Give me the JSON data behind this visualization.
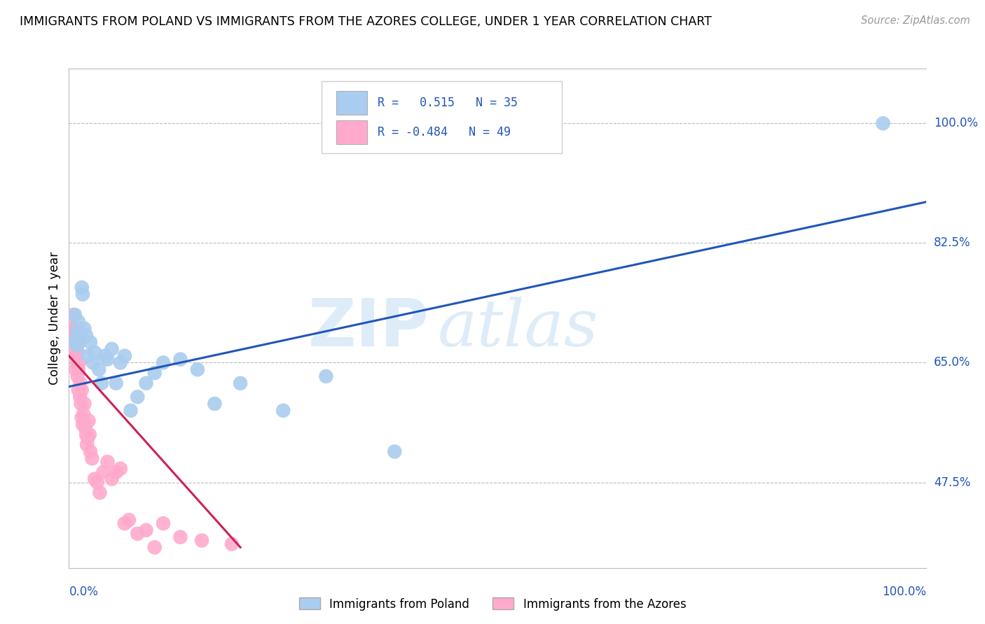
{
  "title": "IMMIGRANTS FROM POLAND VS IMMIGRANTS FROM THE AZORES COLLEGE, UNDER 1 YEAR CORRELATION CHART",
  "source": "Source: ZipAtlas.com",
  "ylabel": "College, Under 1 year",
  "ytick_labels": [
    "100.0%",
    "82.5%",
    "65.0%",
    "47.5%"
  ],
  "ytick_values": [
    1.0,
    0.825,
    0.65,
    0.475
  ],
  "xlim": [
    0.0,
    1.0
  ],
  "ylim": [
    0.35,
    1.08
  ],
  "blue_R": "0.515",
  "blue_N": "35",
  "pink_R": "-0.484",
  "pink_N": "49",
  "blue_color": "#aaccee",
  "pink_color": "#ffaacc",
  "blue_line_color": "#2255bb",
  "pink_line_color": "#cc2255",
  "watermark_zip": "ZIP",
  "watermark_atlas": "atlas",
  "legend_label_blue": "Immigrants from Poland",
  "legend_label_pink": "Immigrants from the Azores",
  "blue_points_x": [
    0.005,
    0.007,
    0.009,
    0.01,
    0.011,
    0.013,
    0.015,
    0.016,
    0.018,
    0.02,
    0.022,
    0.025,
    0.028,
    0.03,
    0.035,
    0.038,
    0.042,
    0.045,
    0.05,
    0.055,
    0.06,
    0.065,
    0.072,
    0.08,
    0.09,
    0.1,
    0.11,
    0.13,
    0.15,
    0.17,
    0.2,
    0.25,
    0.3,
    0.38,
    0.95
  ],
  "blue_points_y": [
    0.68,
    0.72,
    0.695,
    0.675,
    0.71,
    0.685,
    0.76,
    0.75,
    0.7,
    0.69,
    0.66,
    0.68,
    0.65,
    0.665,
    0.64,
    0.62,
    0.66,
    0.655,
    0.67,
    0.62,
    0.65,
    0.66,
    0.58,
    0.6,
    0.62,
    0.635,
    0.65,
    0.655,
    0.64,
    0.59,
    0.62,
    0.58,
    0.63,
    0.52,
    1.0
  ],
  "pink_points_x": [
    0.003,
    0.004,
    0.005,
    0.006,
    0.007,
    0.007,
    0.008,
    0.008,
    0.009,
    0.009,
    0.01,
    0.01,
    0.011,
    0.011,
    0.012,
    0.012,
    0.013,
    0.013,
    0.014,
    0.015,
    0.015,
    0.016,
    0.017,
    0.018,
    0.019,
    0.02,
    0.021,
    0.022,
    0.023,
    0.024,
    0.025,
    0.027,
    0.03,
    0.033,
    0.036,
    0.04,
    0.045,
    0.05,
    0.055,
    0.06,
    0.065,
    0.07,
    0.08,
    0.09,
    0.1,
    0.11,
    0.13,
    0.155,
    0.19
  ],
  "pink_points_y": [
    0.7,
    0.69,
    0.72,
    0.685,
    0.67,
    0.7,
    0.66,
    0.64,
    0.65,
    0.68,
    0.665,
    0.63,
    0.64,
    0.61,
    0.65,
    0.68,
    0.62,
    0.6,
    0.59,
    0.57,
    0.61,
    0.56,
    0.575,
    0.59,
    0.555,
    0.545,
    0.53,
    0.54,
    0.565,
    0.545,
    0.52,
    0.51,
    0.48,
    0.475,
    0.46,
    0.49,
    0.505,
    0.48,
    0.49,
    0.495,
    0.415,
    0.42,
    0.4,
    0.405,
    0.38,
    0.415,
    0.395,
    0.39,
    0.385
  ],
  "blue_line_x": [
    0.0,
    1.0
  ],
  "blue_line_y": [
    0.615,
    0.885
  ],
  "pink_line_x": [
    0.0,
    0.2
  ],
  "pink_line_y": [
    0.66,
    0.38
  ]
}
